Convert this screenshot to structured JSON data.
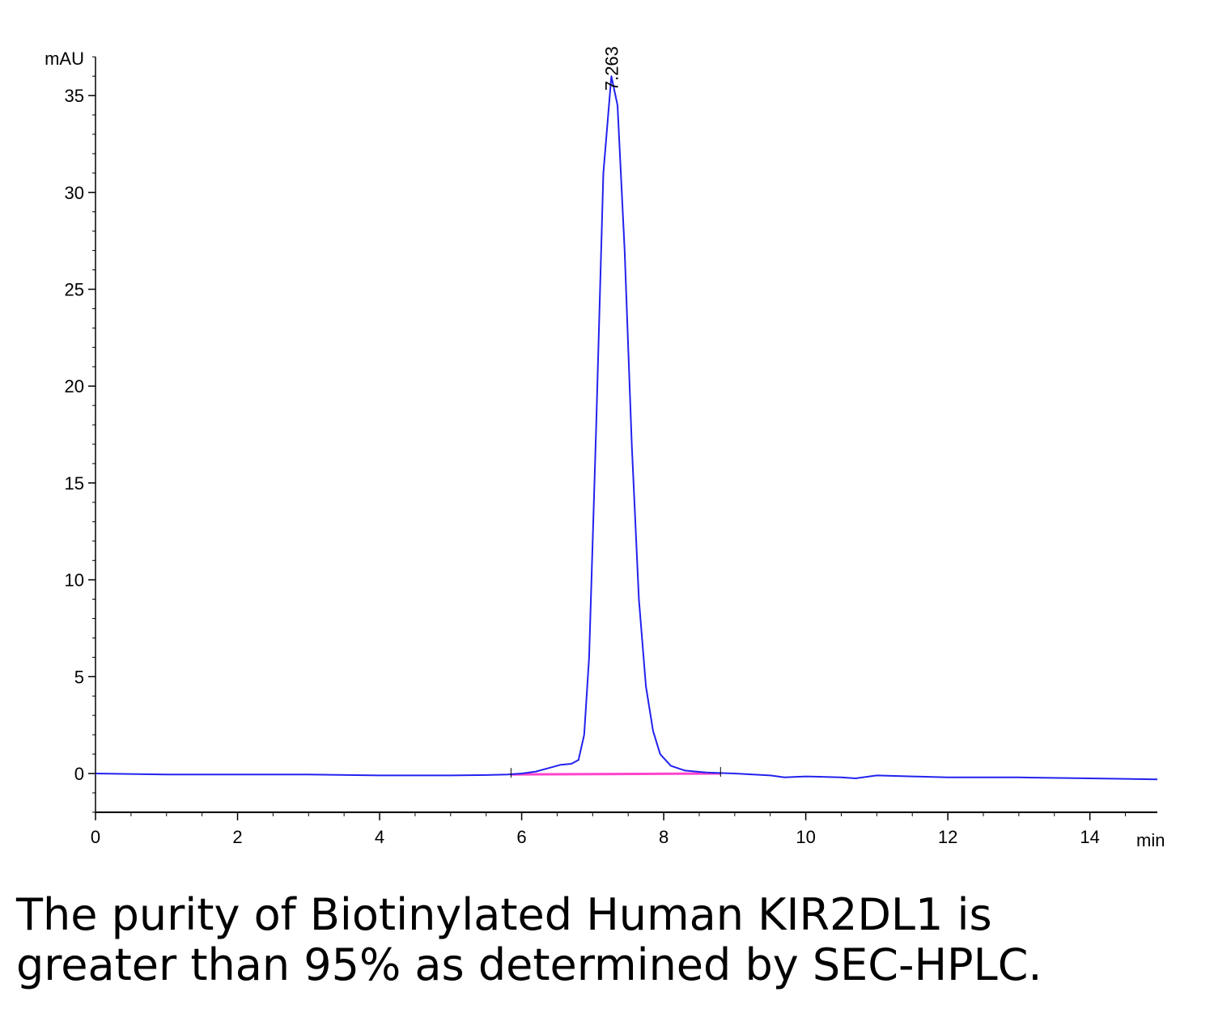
{
  "chart_data": {
    "type": "line",
    "title": "",
    "xlabel": "",
    "ylabel": "",
    "y_unit": "mAU",
    "x_unit": "min",
    "xlim": [
      0,
      14.95
    ],
    "ylim": [
      -2,
      37
    ],
    "x_ticks": [
      0,
      2,
      4,
      6,
      8,
      10,
      12,
      14
    ],
    "y_ticks": [
      0,
      5,
      10,
      15,
      20,
      25,
      30,
      35
    ],
    "grid": false,
    "legend": "none",
    "peak_annotations": [
      {
        "x": 7.263,
        "y": 36.0,
        "label": "7.263"
      }
    ],
    "series": [
      {
        "color": "#2222ee",
        "x": [
          0,
          1,
          2,
          3,
          4,
          5,
          5.5,
          5.8,
          6.0,
          6.2,
          6.4,
          6.55,
          6.7,
          6.8,
          6.88,
          6.95,
          7.05,
          7.15,
          7.263,
          7.35,
          7.45,
          7.55,
          7.65,
          7.75,
          7.85,
          7.95,
          8.1,
          8.3,
          8.6,
          9.0,
          9.5,
          9.7,
          10.0,
          10.5,
          10.7,
          11.0,
          11.5,
          12.0,
          13.0,
          14.0,
          14.95
        ],
        "y": [
          0.0,
          -0.05,
          -0.05,
          -0.05,
          -0.1,
          -0.1,
          -0.08,
          -0.05,
          0.0,
          0.1,
          0.3,
          0.45,
          0.5,
          0.7,
          2.0,
          6.0,
          18.0,
          31.0,
          36.0,
          34.5,
          27.0,
          17.0,
          9.0,
          4.5,
          2.2,
          1.0,
          0.4,
          0.15,
          0.05,
          0.0,
          -0.1,
          -0.2,
          -0.15,
          -0.2,
          -0.25,
          -0.1,
          -0.15,
          -0.2,
          -0.2,
          -0.25,
          -0.3
        ]
      },
      {
        "color": "#ff44cc",
        "x": [
          5.85,
          8.8
        ],
        "y": [
          -0.05,
          0.0
        ]
      }
    ]
  },
  "caption": {
    "line1": "The purity of Biotinylated Human KIR2DL1 is",
    "line2": "greater than 95% as determined by SEC-HPLC."
  }
}
